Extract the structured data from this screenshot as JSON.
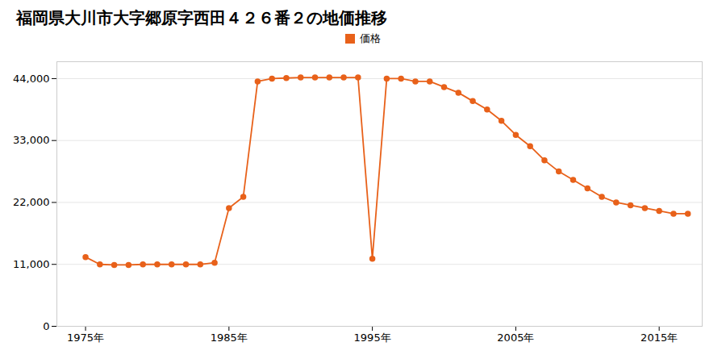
{
  "chart_data": {
    "type": "line",
    "title": "福岡県大川市大字郷原字西田４２６番２の地価推移",
    "x": [
      1975,
      1976,
      1977,
      1978,
      1979,
      1980,
      1981,
      1982,
      1983,
      1984,
      1985,
      1986,
      1987,
      1988,
      1989,
      1990,
      1991,
      1992,
      1993,
      1994,
      1995,
      1996,
      1997,
      1998,
      1999,
      2000,
      2001,
      2002,
      2003,
      2004,
      2005,
      2006,
      2007,
      2008,
      2009,
      2010,
      2011,
      2012,
      2013,
      2014,
      2015,
      2016,
      2017
    ],
    "series": [
      {
        "name": "価格",
        "color": "#E8611A",
        "marker": "circle",
        "line_style": "solid",
        "values": [
          12300,
          11000,
          10900,
          10900,
          11000,
          11000,
          11000,
          11000,
          11000,
          11300,
          21000,
          23000,
          43500,
          44000,
          44100,
          44200,
          44200,
          44200,
          44200,
          44200,
          12000,
          44000,
          44000,
          43500,
          43500,
          42500,
          41500,
          40000,
          38500,
          36500,
          34000,
          32000,
          29500,
          27500,
          26000,
          24500,
          23000,
          22000,
          21500,
          21000,
          20500,
          20000,
          20000
        ]
      }
    ],
    "xlim": [
      1973,
      2018
    ],
    "xticks": [
      {
        "value": 1975,
        "label": "1975年"
      },
      {
        "value": 1985,
        "label": "1985年"
      },
      {
        "value": 1995,
        "label": "1995年"
      },
      {
        "value": 2005,
        "label": "2005年"
      },
      {
        "value": 2015,
        "label": "2015年"
      }
    ],
    "ylim": [
      0,
      47000
    ],
    "yticks": [
      0,
      {
        "value": 11000,
        "label": "11,000"
      },
      {
        "value": 22000,
        "label": "22,000"
      },
      {
        "value": 33000,
        "label": "33,000"
      },
      {
        "value": 44000,
        "label": "44,000"
      }
    ],
    "grid": true,
    "legend": "top"
  }
}
